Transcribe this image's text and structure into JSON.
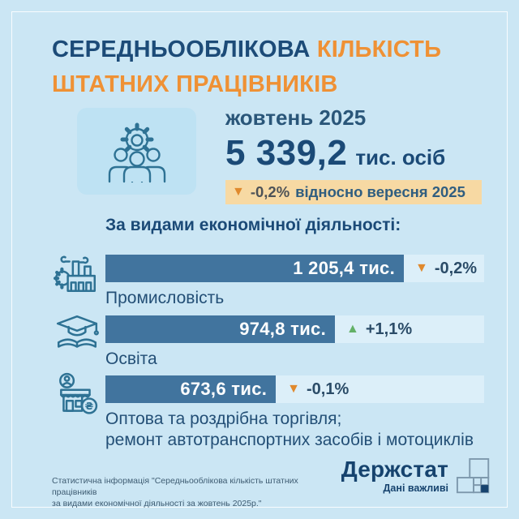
{
  "title": {
    "word_navy": "СЕРЕДНЬООБЛІКОВА",
    "word_orange": "КІЛЬКІСТЬ",
    "line2": "ШТАТНИХ ПРАЦІВНИКІВ"
  },
  "hero": {
    "period": "жовтень 2025",
    "value": "5 339,2",
    "unit": "тис. осіб",
    "arrow": "▼",
    "change": "-0,2%",
    "change_note": "відносно вересня 2025"
  },
  "section": {
    "heading": "За видами економічної діяльності:"
  },
  "rows": [
    {
      "icon": "factory-icon",
      "value_label": "1 205,4 тис.",
      "arrow": "▼",
      "change": "-0,2%",
      "direction": "down",
      "bar_pct": 78.8,
      "label_lines": [
        "Промисловість"
      ]
    },
    {
      "icon": "graduation-cap-icon",
      "value_label": "974,8 тис.",
      "arrow": "▲",
      "change": "+1,1%",
      "direction": "up",
      "bar_pct": 60.6,
      "label_lines": [
        "Освіта"
      ]
    },
    {
      "icon": "shop-icon",
      "value_label": "673,6 тис.",
      "arrow": "▼",
      "change": "-0,1%",
      "direction": "down",
      "bar_pct": 45.0,
      "label_lines": [
        "Оптова та роздрібна торгівля;",
        "ремонт автотранспортних засобів і мотоциклів"
      ]
    }
  ],
  "footer": {
    "note_line1": "Статистична інформація \"Середньооблікова кількість штатних працівників",
    "note_line2": "за видами економічної діяльності за жовтень 2025р.\"",
    "logo_name": "Держстат",
    "logo_tagline": "Дані важливі"
  },
  "colors": {
    "up": "#63b167",
    "down": "#e0892d",
    "navy": "#1c4b78",
    "orange": "#ef9135",
    "bar": "#41749e",
    "track": "#dceff9",
    "highlight_bg": "#f7d9a3",
    "card_bg": "#bee2f3",
    "page_bg": "#cbe6f4",
    "icon_stroke": "#2e7294"
  },
  "chart_data": {
    "type": "bar",
    "orientation": "horizontal",
    "title": "Середньооблікова кількість штатних працівників",
    "period": "жовтень 2025",
    "total": {
      "value": 5339.2,
      "unit": "тис. осіб",
      "change_pct": -0.2,
      "change_note": "відносно вересня 2025"
    },
    "categories": [
      "Промисловість",
      "Освіта",
      "Оптова та роздрібна торгівля; ремонт автотранспортних засобів і мотоциклів"
    ],
    "values": [
      1205.4,
      974.8,
      673.6
    ],
    "value_unit": "тис.",
    "changes_pct": [
      -0.2,
      1.1,
      -0.1
    ],
    "value_labels": [
      "1 205,4 тис.",
      "974,8 тис.",
      "673,6 тис."
    ],
    "legend": "none",
    "grid": false
  }
}
